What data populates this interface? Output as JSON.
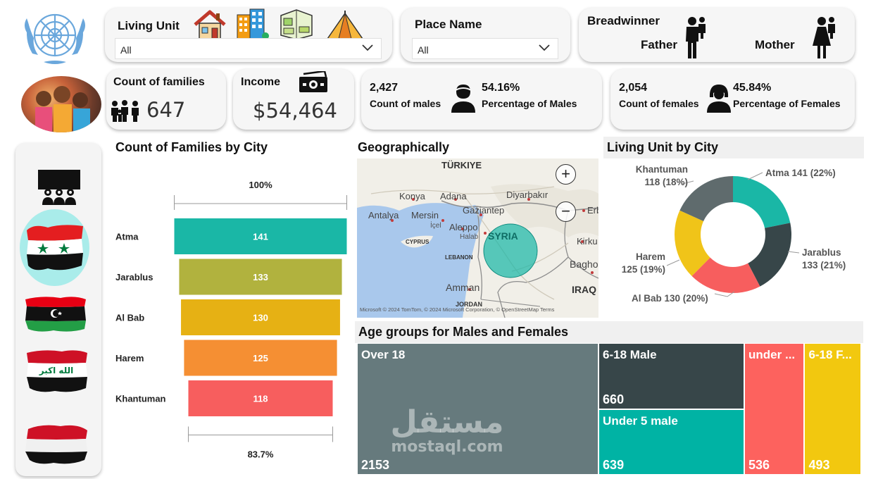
{
  "filters": {
    "living_unit": {
      "title": "Living Unit",
      "value": "All",
      "icons": [
        "house-icon",
        "apartment-building-icon",
        "room-interior-icon",
        "tent-icon"
      ]
    },
    "place_name": {
      "title": "Place Name",
      "value": "All"
    },
    "breadwinner": {
      "title": "Breadwinner",
      "options": [
        "Father",
        "Mother"
      ]
    }
  },
  "kpis": {
    "families": {
      "title": "Count of families",
      "value": "647"
    },
    "income": {
      "title": "Income",
      "value": "$54,464"
    },
    "males": {
      "count": "2,427",
      "count_label": "Count of males",
      "pct": "54.16%",
      "pct_label": "Percentage of Males"
    },
    "females": {
      "count": "2,054",
      "count_label": "Count of females",
      "pct": "45.84%",
      "pct_label": "Percentage of Females"
    }
  },
  "sidebar": {
    "items": [
      "overview-people-icon",
      "syria-flag",
      "libya-flag",
      "iraq-flag",
      "yemen-flag"
    ]
  },
  "map": {
    "title": "Geographically",
    "labels": {
      "turkiye": "TÜRKIYE",
      "konya": "Konya",
      "adana": "Adana",
      "diyarbakir": "Diyarbakır",
      "antalya": "Antalya",
      "mersin": "Mersin",
      "gaziantep": "Gaziantep",
      "icel": "İçel",
      "aleppo": "Aleppo",
      "halab": "Halab",
      "cyprus": "CYPRUS",
      "lebanon": "LEBANON",
      "amman": "Amman",
      "jordan": "JORDAN",
      "iraq": "IRAQ",
      "syria": "SYRIA",
      "erbil": "Erb",
      "kirkuk": "Kirku",
      "baghdad": "Bagho"
    },
    "attribution": "Microsoft  © 2024 TomTom, © 2024 Microsoft Corporation, © OpenStreetMap  Terms",
    "zoom_in": "+",
    "zoom_out": "−"
  },
  "chart_data": [
    {
      "type": "bar",
      "title": "Count of Families by City",
      "categories": [
        "Atma",
        "Jarablus",
        "Al Bab",
        "Harem",
        "Khantuman"
      ],
      "values": [
        141,
        133,
        130,
        125,
        118
      ],
      "colors": [
        "#1ab7a6",
        "#b1b23e",
        "#e6b114",
        "#f58f33",
        "#f75e5e"
      ],
      "top_pct_label": "100%",
      "bottom_pct_label": "83.7%"
    },
    {
      "type": "pie",
      "title": "Living Unit by City",
      "labels": [
        "Atma",
        "Jarablus",
        "Al Bab",
        "Harem",
        "Khantuman"
      ],
      "values": [
        141,
        133,
        130,
        125,
        118
      ],
      "percents": [
        "22%",
        "21%",
        "20%",
        "19%",
        "18%"
      ],
      "colors": [
        "#1ab7a6",
        "#374649",
        "#f75e5e",
        "#f0c419",
        "#5f6b6d"
      ]
    },
    {
      "type": "heatmap",
      "title": "Age groups for Males and Females",
      "items": [
        {
          "name": "Over 18",
          "value": 2153,
          "color": "#667a7d"
        },
        {
          "name": "6-18 Male",
          "value": 660,
          "color": "#374649"
        },
        {
          "name": "Under 5 male",
          "value": 639,
          "color": "#00b3a4"
        },
        {
          "name": "under ...",
          "value": 536,
          "color": "#fd625e"
        },
        {
          "name": "6-18 F...",
          "value": 493,
          "color": "#f2c80f"
        }
      ]
    }
  ],
  "watermark": {
    "arabic": "مستقل",
    "latin": "mostaql.com"
  }
}
